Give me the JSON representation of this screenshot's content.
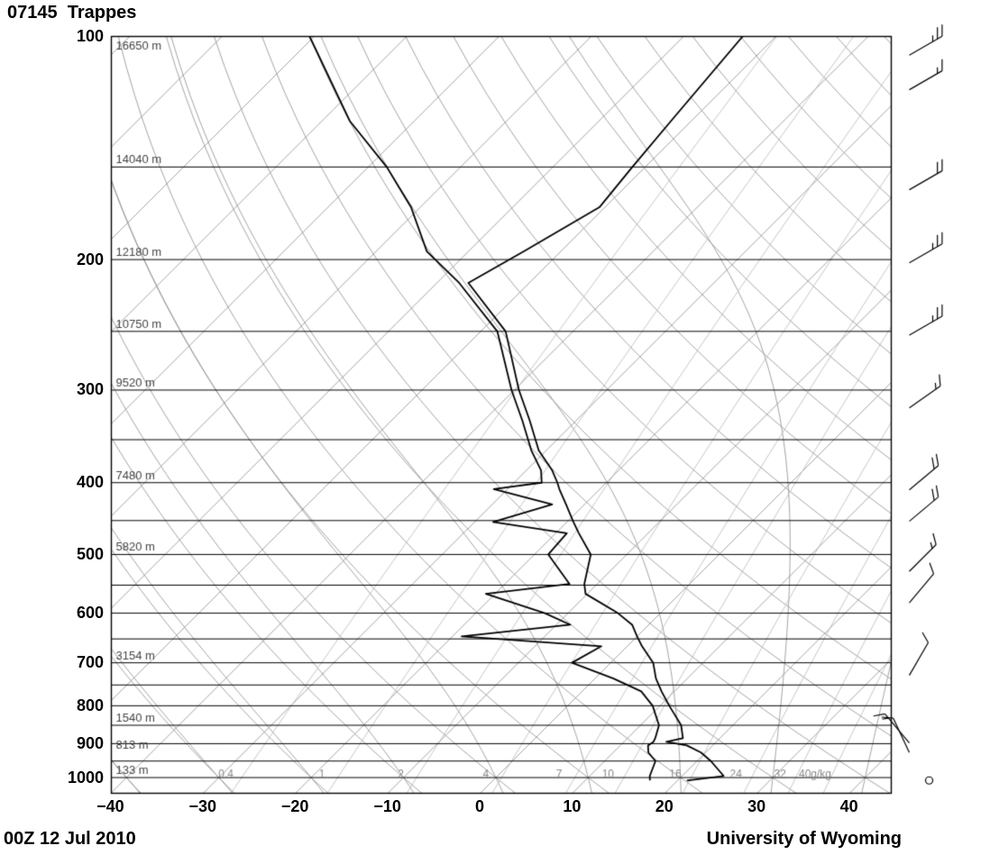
{
  "header": {
    "station_title": "07145  Trappes"
  },
  "footer": {
    "datetime": "00Z 12 Jul 2010",
    "credit": "University of Wyoming"
  },
  "chart_data": {
    "type": "skewt_log_p",
    "title": "07145  Trappes",
    "pressure_axis": {
      "unit": "hPa",
      "range": [
        100,
        1050
      ],
      "tick_labels": [
        100,
        200,
        300,
        400,
        500,
        600,
        700,
        800,
        900,
        1000
      ]
    },
    "temperature_axis": {
      "unit": "degC",
      "tick_labels": [
        -40,
        -30,
        -20,
        -10,
        0,
        10,
        20,
        30,
        40
      ]
    },
    "background": {
      "isobars_hpa": {
        "min": 100,
        "max": 1000,
        "step": 50
      },
      "isotherms_c": {
        "min": -120,
        "max": 40,
        "step": 10
      },
      "dry_adiabats_theta_c": {
        "min": -40,
        "max": 180,
        "step": 10
      },
      "moist_adiabats_start_c": {
        "min": -40,
        "max": 40,
        "step": 10
      },
      "mixing_ratio_g_kg": [
        0.4,
        1,
        2,
        4,
        7,
        10,
        16,
        24,
        32,
        40
      ],
      "mixing_ratio_labels": [
        "0.4",
        "1",
        "2",
        "4",
        "7",
        "10",
        "16",
        "24",
        "32",
        "40g/kg"
      ]
    },
    "height_labels": [
      {
        "p": 100,
        "label": "16650 m"
      },
      {
        "p": 150,
        "label": "14040 m"
      },
      {
        "p": 200,
        "label": "12180 m"
      },
      {
        "p": 250,
        "label": "10750 m"
      },
      {
        "p": 300,
        "label": "9520 m"
      },
      {
        "p": 400,
        "label": "7480 m"
      },
      {
        "p": 500,
        "label": "5820 m"
      },
      {
        "p": 700,
        "label": "3154 m"
      },
      {
        "p": 850,
        "label": "1540 m"
      },
      {
        "p": 925,
        "label": "813 m"
      },
      {
        "p": 1000,
        "label": "133 m"
      }
    ],
    "sounding": {
      "temperature_p_c": [
        [
          1009,
          21.0
        ],
        [
          995,
          24.5
        ],
        [
          950,
          21.5
        ],
        [
          925,
          19.5
        ],
        [
          905,
          17.2
        ],
        [
          895,
          14.6
        ],
        [
          885,
          16.0
        ],
        [
          850,
          14.4
        ],
        [
          800,
          11.0
        ],
        [
          765,
          8.6
        ],
        [
          735,
          6.6
        ],
        [
          700,
          4.6
        ],
        [
          665,
          1.6
        ],
        [
          645,
          0.0
        ],
        [
          622,
          -1.8
        ],
        [
          600,
          -4.6
        ],
        [
          565,
          -10.2
        ],
        [
          548,
          -11.4
        ],
        [
          500,
          -13.9
        ],
        [
          468,
          -17.5
        ],
        [
          452,
          -19.3
        ],
        [
          428,
          -22.0
        ],
        [
          408,
          -24.4
        ],
        [
          400,
          -25.3
        ],
        [
          385,
          -27.2
        ],
        [
          362,
          -30.8
        ],
        [
          330,
          -35.0
        ],
        [
          300,
          -39.5
        ],
        [
          250,
          -47.3
        ],
        [
          215,
          -56.6
        ],
        [
          195,
          -54.0
        ],
        [
          170,
          -50.6
        ],
        [
          150,
          -51.4
        ],
        [
          130,
          -52.2
        ],
        [
          100,
          -53.6
        ]
      ],
      "dewpoint_p_c": [
        [
          1009,
          17.0
        ],
        [
          995,
          16.5
        ],
        [
          950,
          15.5
        ],
        [
          925,
          13.8
        ],
        [
          905,
          13.0
        ],
        [
          895,
          13.2
        ],
        [
          885,
          13.0
        ],
        [
          850,
          12.0
        ],
        [
          800,
          9.2
        ],
        [
          765,
          6.4
        ],
        [
          735,
          2.0
        ],
        [
          700,
          -4.2
        ],
        [
          665,
          -2.8
        ],
        [
          645,
          -19.0
        ],
        [
          622,
          -8.5
        ],
        [
          600,
          -12.5
        ],
        [
          565,
          -21.0
        ],
        [
          548,
          -13.0
        ],
        [
          500,
          -18.5
        ],
        [
          468,
          -18.8
        ],
        [
          452,
          -28.0
        ],
        [
          428,
          -23.5
        ],
        [
          408,
          -31.5
        ],
        [
          400,
          -27.0
        ],
        [
          385,
          -28.4
        ],
        [
          362,
          -31.6
        ],
        [
          330,
          -35.8
        ],
        [
          300,
          -40.3
        ],
        [
          250,
          -48.2
        ],
        [
          215,
          -57.6
        ],
        [
          195,
          -64.5
        ],
        [
          170,
          -71.0
        ],
        [
          150,
          -78.0
        ],
        [
          130,
          -87.0
        ],
        [
          100,
          -100.5
        ]
      ]
    },
    "wind_barbs": [
      {
        "p": 1009,
        "speed_kt": 0,
        "direction_deg": 0
      },
      {
        "p": 925,
        "speed_kt": 10,
        "direction_deg": 335
      },
      {
        "p": 898,
        "speed_kt": 15,
        "direction_deg": 320
      },
      {
        "p": 728,
        "speed_kt": 10,
        "direction_deg": 30
      },
      {
        "p": 581,
        "speed_kt": 10,
        "direction_deg": 40
      },
      {
        "p": 527,
        "speed_kt": 15,
        "direction_deg": 45
      },
      {
        "p": 451,
        "speed_kt": 20,
        "direction_deg": 50
      },
      {
        "p": 409,
        "speed_kt": 20,
        "direction_deg": 50
      },
      {
        "p": 317,
        "speed_kt": 15,
        "direction_deg": 55
      },
      {
        "p": 253,
        "speed_kt": 25,
        "direction_deg": 60
      },
      {
        "p": 202,
        "speed_kt": 25,
        "direction_deg": 60
      },
      {
        "p": 161,
        "speed_kt": 20,
        "direction_deg": 60
      },
      {
        "p": 118,
        "speed_kt": 15,
        "direction_deg": 60
      },
      {
        "p": 106,
        "speed_kt": 25,
        "direction_deg": 60
      }
    ],
    "colors": {
      "sounding_line": "#000000",
      "isobar": "#000000",
      "grid_gray": "#999999",
      "grid_light": "#b8b8b8",
      "mixing_label": "#888888",
      "height_label": "#444444"
    }
  }
}
